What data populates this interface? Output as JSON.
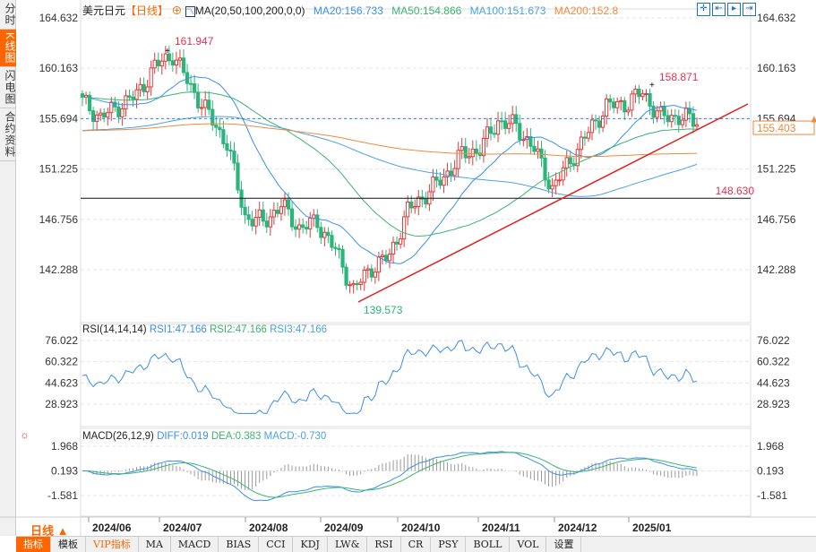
{
  "sidebar": [
    {
      "label": "分时",
      "active": false
    },
    {
      "label": "K线图",
      "active": true
    },
    {
      "label": "闪电图",
      "active": false
    },
    {
      "label": "合约资料",
      "active": false
    }
  ],
  "header": {
    "symbol": "美元日元",
    "period": "【日线】",
    "ma_label": "MA(20,50,100,200,0,0)",
    "ma20": "MA20:156.733",
    "ma50": "MA50:154.866",
    "ma100": "MA100:151.673",
    "ma200": "MA200:152.8"
  },
  "colors": {
    "ma20": "#3b8fe8",
    "ma50": "#3cb371",
    "ma100": "#4aa3df",
    "ma200": "#f08a3c",
    "up": "#e23a3a",
    "down": "#2bb57a"
  },
  "price_axis": {
    "ticks": [
      "164.632",
      "160.163",
      "155.694",
      "151.225",
      "146.756",
      "142.288"
    ],
    "current": "155.403",
    "current_line": "155.694"
  },
  "annotations": {
    "high1": "161.947",
    "high2": "158.871",
    "low": "139.573",
    "level": "148.630"
  },
  "rsi": {
    "label": "RSI(14,14,14)",
    "rsi1": "RSI1:47.166",
    "rsi2": "RSI2:47.166",
    "rsi3": "RSI3:47.166",
    "ticks": [
      "76.022",
      "60.322",
      "44.623",
      "28.923"
    ]
  },
  "macd": {
    "label": "MACD(26,12,9)",
    "diff": "DIFF:0.019",
    "dea": "DEA:0.383",
    "macd": "MACD:-0.730",
    "ticks": [
      "1.968",
      "0.193",
      "-1.581"
    ]
  },
  "period_selector": "日线 ▲",
  "dates": [
    "2024/06",
    "2024/07",
    "2024/08",
    "2024/09",
    "2024/10",
    "2024/11",
    "2024/12",
    "2025/01"
  ],
  "tabs": [
    "指标",
    "模板",
    "VIP指标",
    "MA",
    "MACD",
    "BIAS",
    "CCI",
    "KDJ",
    "LW&",
    "RSI",
    "CR",
    "PSY",
    "BOLL",
    "VOL",
    "设置"
  ],
  "chart_data": {
    "type": "candlestick",
    "step_days": 5,
    "closes": [
      157.2,
      155.8,
      156.8,
      157.8,
      160.3,
      161.4,
      158.5,
      156,
      153.5,
      147,
      146.5,
      148,
      146,
      146.5,
      144,
      140.5,
      142.5,
      143.5,
      147.5,
      149,
      150.5,
      152.5,
      153,
      155.5,
      155,
      153,
      149.5,
      152,
      154.5,
      156.8,
      157,
      158,
      155.8,
      155.9,
      155.4
    ],
    "ylim": [
      142.288,
      164.632
    ]
  }
}
